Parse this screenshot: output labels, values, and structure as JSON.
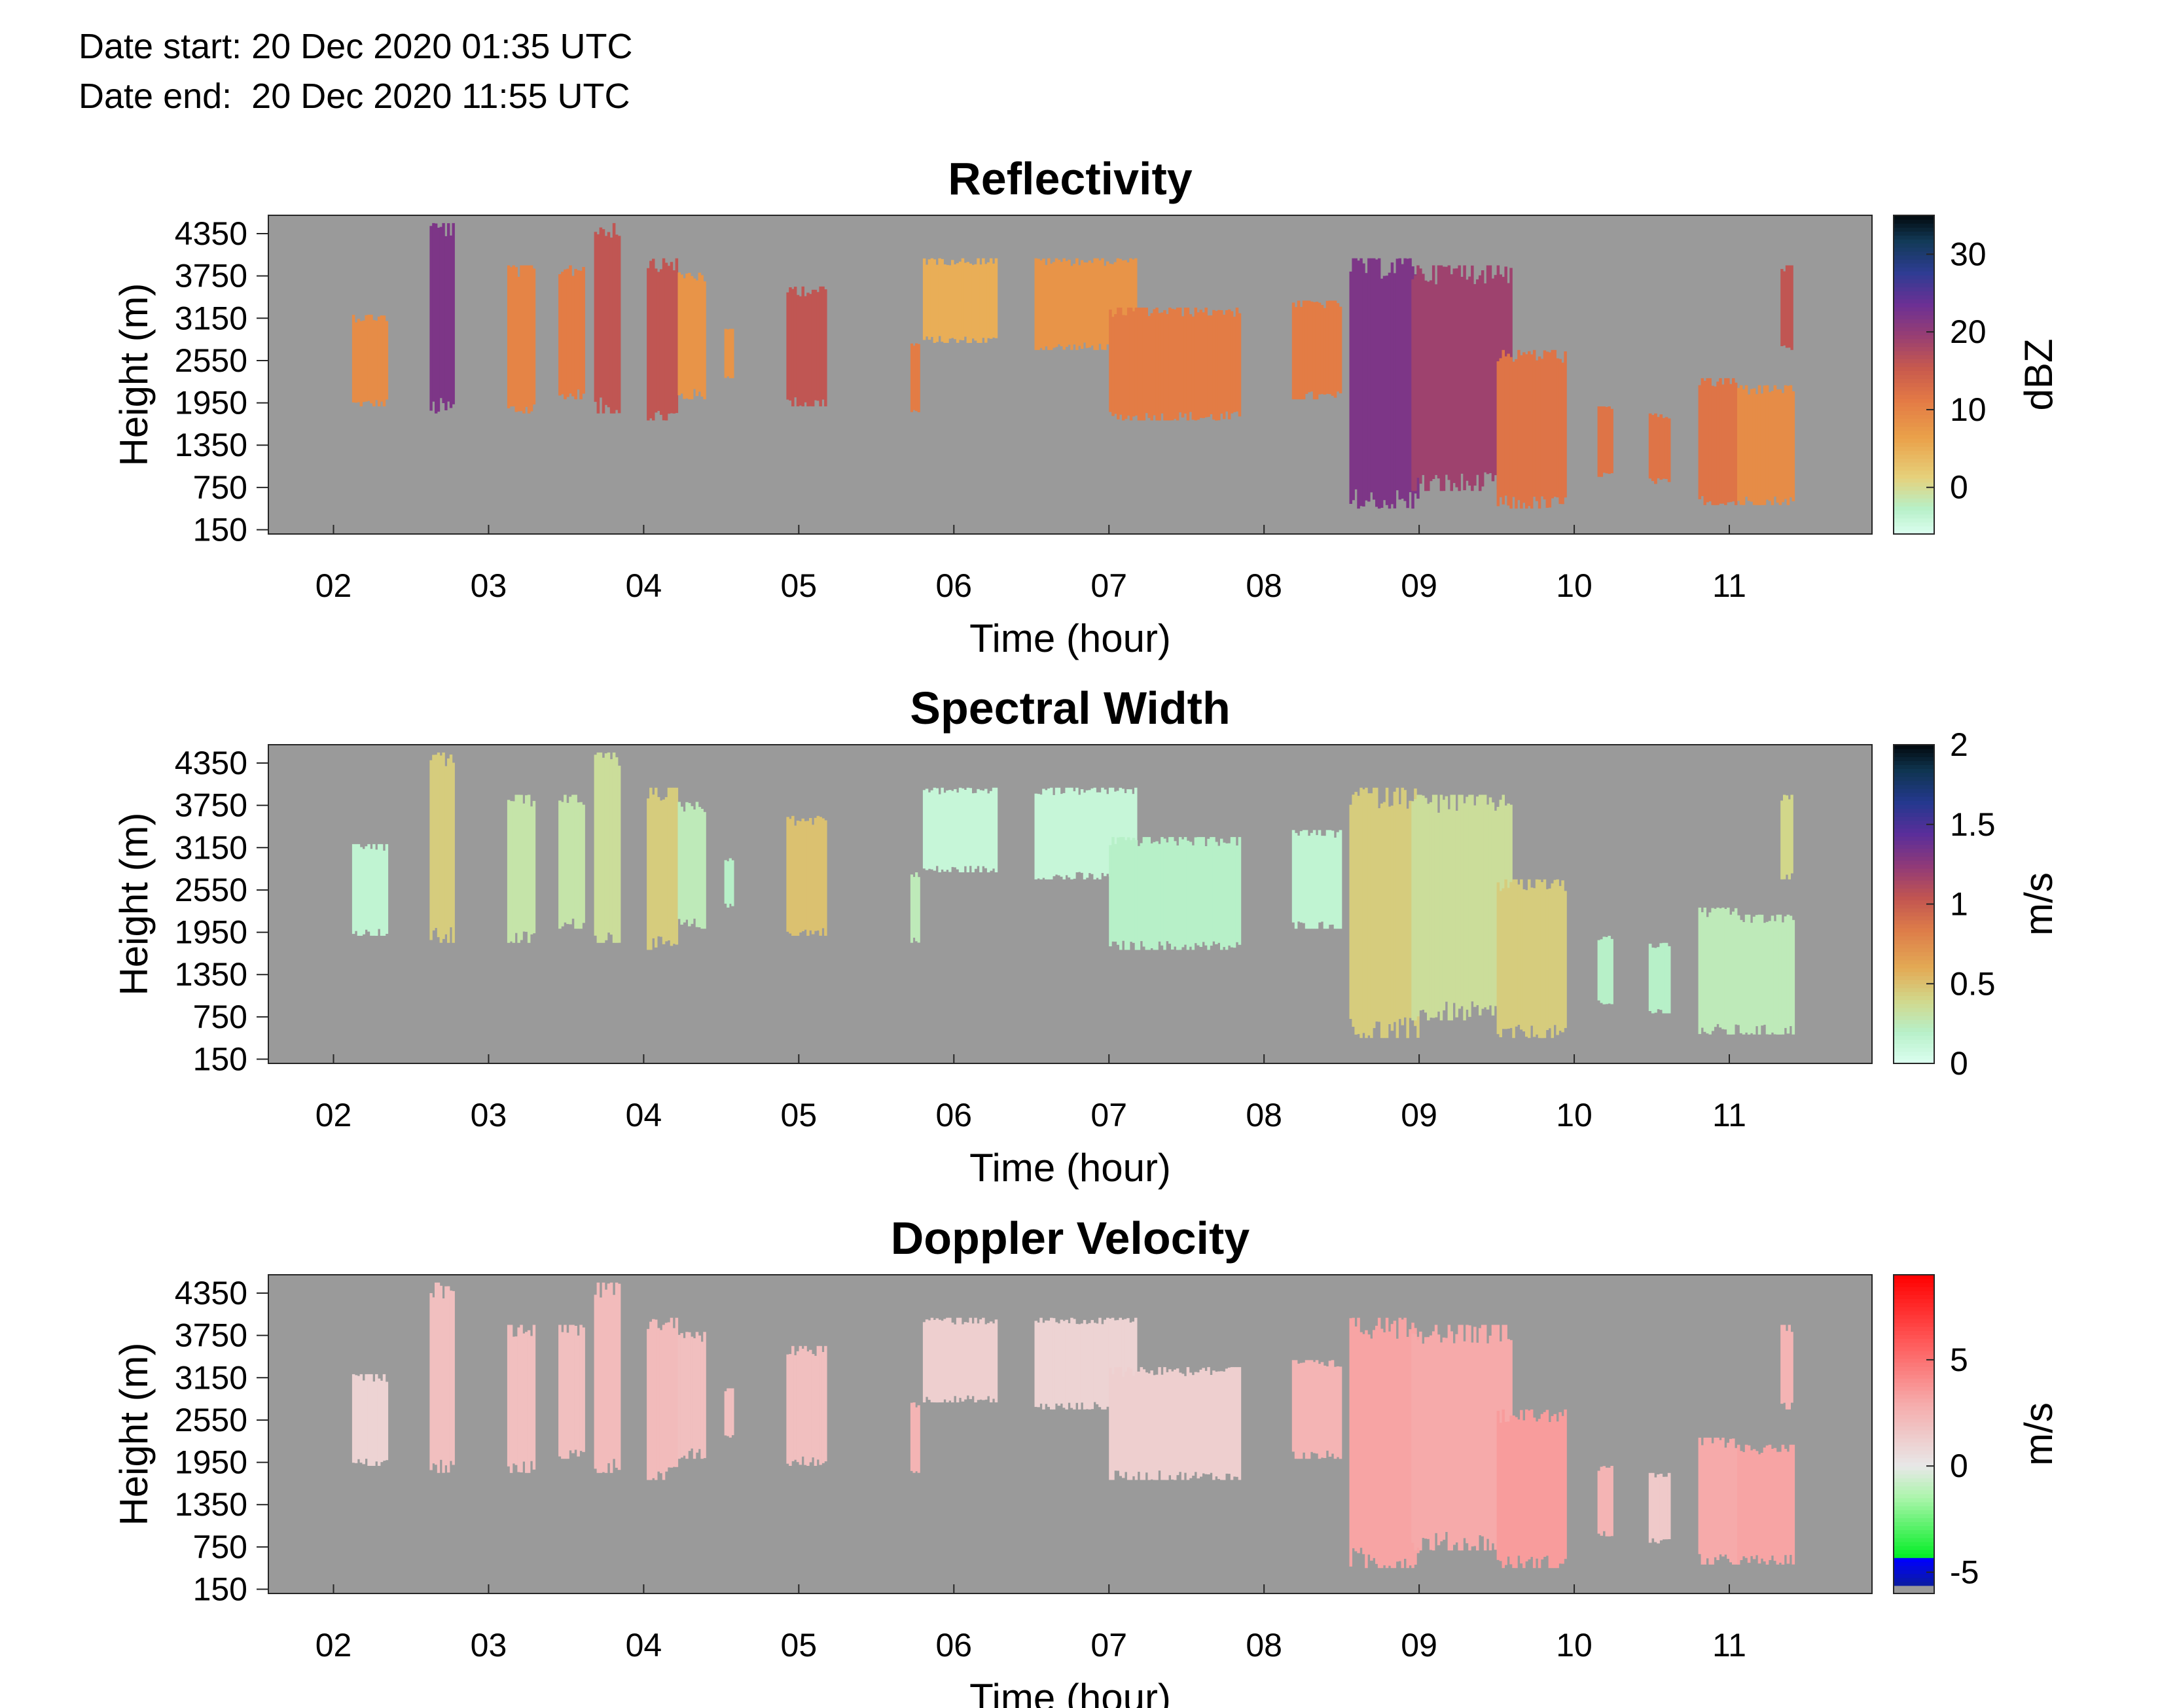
{
  "header": {
    "date_start": "Date start: 20 Dec 2020 01:35 UTC",
    "date_end": "Date end:  20 Dec 2020 11:55 UTC"
  },
  "chart_data": [
    {
      "type": "heatmap",
      "title": "Reflectivity",
      "xlabel": "Time (hour)",
      "ylabel": "Height (m)",
      "xlim": [
        1.58,
        11.92
      ],
      "ylim": [
        90,
        4610
      ],
      "x_ticks": [
        "02",
        "03",
        "04",
        "05",
        "06",
        "07",
        "08",
        "09",
        "10",
        "11"
      ],
      "x_tick_values": [
        2,
        3,
        4,
        5,
        6,
        7,
        8,
        9,
        10,
        11
      ],
      "y_ticks": [
        "4350",
        "3750",
        "3150",
        "2550",
        "1950",
        "1350",
        "750",
        "150"
      ],
      "y_tick_values": [
        4350,
        3750,
        3150,
        2550,
        1950,
        1350,
        750,
        150
      ],
      "colorbar": {
        "label": "dBZ",
        "range": [
          -6,
          35
        ],
        "ticks": [
          "30",
          "20",
          "10",
          "0"
        ],
        "tick_values": [
          30,
          20,
          10,
          0
        ],
        "colormap": "reflectivity"
      },
      "background_color": "#9a9a9a",
      "echoes": [
        {
          "t0": 2.12,
          "t1": 2.35,
          "h0": 1900,
          "h1": 3200,
          "value": 9
        },
        {
          "t0": 2.62,
          "t1": 2.78,
          "h0": 1800,
          "h1": 4500,
          "value": 22
        },
        {
          "t0": 3.12,
          "t1": 3.3,
          "h0": 1800,
          "h1": 3900,
          "value": 10
        },
        {
          "t0": 3.45,
          "t1": 3.62,
          "h0": 2000,
          "h1": 3900,
          "value": 11
        },
        {
          "t0": 3.68,
          "t1": 3.85,
          "h0": 1800,
          "h1": 4500,
          "value": 16
        },
        {
          "t0": 4.02,
          "t1": 4.22,
          "h0": 1700,
          "h1": 4000,
          "value": 16
        },
        {
          "t0": 4.22,
          "t1": 4.4,
          "h0": 2000,
          "h1": 3800,
          "value": 8
        },
        {
          "t0": 4.52,
          "t1": 4.58,
          "h0": 2300,
          "h1": 3000,
          "value": 8
        },
        {
          "t0": 4.92,
          "t1": 5.18,
          "h0": 1900,
          "h1": 3600,
          "value": 16
        },
        {
          "t0": 5.72,
          "t1": 5.78,
          "h0": 1800,
          "h1": 2800,
          "value": 11
        },
        {
          "t0": 5.8,
          "t1": 6.28,
          "h0": 2800,
          "h1": 4000,
          "value": 5
        },
        {
          "t0": 6.52,
          "t1": 7.18,
          "h0": 2700,
          "h1": 4000,
          "value": 8
        },
        {
          "t0": 7.0,
          "t1": 7.85,
          "h0": 1700,
          "h1": 3300,
          "value": 11
        },
        {
          "t0": 8.18,
          "t1": 8.5,
          "h0": 2000,
          "h1": 3400,
          "value": 11
        },
        {
          "t0": 8.55,
          "t1": 9.0,
          "h0": 450,
          "h1": 4000,
          "value": 22
        },
        {
          "t0": 8.95,
          "t1": 9.6,
          "h0": 700,
          "h1": 3900,
          "value": 19
        },
        {
          "t0": 9.5,
          "t1": 9.95,
          "h0": 450,
          "h1": 2700,
          "value": 12
        },
        {
          "t0": 10.15,
          "t1": 10.25,
          "h0": 900,
          "h1": 1900,
          "value": 12
        },
        {
          "t0": 10.48,
          "t1": 10.62,
          "h0": 800,
          "h1": 1800,
          "value": 12
        },
        {
          "t0": 10.8,
          "t1": 11.05,
          "h0": 500,
          "h1": 2300,
          "value": 12
        },
        {
          "t0": 11.05,
          "t1": 11.42,
          "h0": 500,
          "h1": 2200,
          "value": 9
        },
        {
          "t0": 11.33,
          "t1": 11.41,
          "h0": 2700,
          "h1": 3900,
          "value": 16
        }
      ]
    },
    {
      "type": "heatmap",
      "title": "Spectral Width",
      "xlabel": "Time (hour)",
      "ylabel": "Height (m)",
      "xlim": [
        1.58,
        11.92
      ],
      "ylim": [
        90,
        4610
      ],
      "x_ticks": [
        "02",
        "03",
        "04",
        "05",
        "06",
        "07",
        "08",
        "09",
        "10",
        "11"
      ],
      "x_tick_values": [
        2,
        3,
        4,
        5,
        6,
        7,
        8,
        9,
        10,
        11
      ],
      "y_ticks": [
        "4350",
        "3750",
        "3150",
        "2550",
        "1950",
        "1350",
        "750",
        "150"
      ],
      "y_tick_values": [
        4350,
        3750,
        3150,
        2550,
        1950,
        1350,
        750,
        150
      ],
      "colorbar": {
        "label": "m/s",
        "range": [
          0,
          2
        ],
        "ticks": [
          "2",
          "1.5",
          "1",
          "0.5",
          "0"
        ],
        "tick_values": [
          2,
          1.5,
          1,
          0.5,
          0
        ],
        "colormap": "width"
      },
      "background_color": "#9a9a9a",
      "echoes": [
        {
          "t0": 2.12,
          "t1": 2.35,
          "h0": 1900,
          "h1": 3200,
          "value": 0.15
        },
        {
          "t0": 2.62,
          "t1": 2.78,
          "h0": 1800,
          "h1": 4500,
          "value": 0.45
        },
        {
          "t0": 3.12,
          "t1": 3.3,
          "h0": 1800,
          "h1": 3900,
          "value": 0.3
        },
        {
          "t0": 3.45,
          "t1": 3.62,
          "h0": 2000,
          "h1": 3900,
          "value": 0.3
        },
        {
          "t0": 3.68,
          "t1": 3.85,
          "h0": 1800,
          "h1": 4500,
          "value": 0.35
        },
        {
          "t0": 4.02,
          "t1": 4.22,
          "h0": 1700,
          "h1": 4000,
          "value": 0.45
        },
        {
          "t0": 4.22,
          "t1": 4.4,
          "h0": 2000,
          "h1": 3800,
          "value": 0.25
        },
        {
          "t0": 4.52,
          "t1": 4.58,
          "h0": 2300,
          "h1": 3000,
          "value": 0.2
        },
        {
          "t0": 4.92,
          "t1": 5.18,
          "h0": 1900,
          "h1": 3600,
          "value": 0.5
        },
        {
          "t0": 5.72,
          "t1": 5.78,
          "h0": 1800,
          "h1": 2800,
          "value": 0.25
        },
        {
          "t0": 5.8,
          "t1": 6.28,
          "h0": 2800,
          "h1": 4000,
          "value": 0.12
        },
        {
          "t0": 6.52,
          "t1": 7.18,
          "h0": 2700,
          "h1": 4000,
          "value": 0.12
        },
        {
          "t0": 7.0,
          "t1": 7.85,
          "h0": 1700,
          "h1": 3300,
          "value": 0.2
        },
        {
          "t0": 8.18,
          "t1": 8.5,
          "h0": 2000,
          "h1": 3400,
          "value": 0.15
        },
        {
          "t0": 8.55,
          "t1": 9.0,
          "h0": 450,
          "h1": 4000,
          "value": 0.45
        },
        {
          "t0": 8.95,
          "t1": 9.6,
          "h0": 700,
          "h1": 3900,
          "value": 0.35
        },
        {
          "t0": 9.5,
          "t1": 9.95,
          "h0": 450,
          "h1": 2700,
          "value": 0.45
        },
        {
          "t0": 10.15,
          "t1": 10.25,
          "h0": 900,
          "h1": 1900,
          "value": 0.2
        },
        {
          "t0": 10.48,
          "t1": 10.62,
          "h0": 800,
          "h1": 1800,
          "value": 0.2
        },
        {
          "t0": 10.8,
          "t1": 11.05,
          "h0": 500,
          "h1": 2300,
          "value": 0.25
        },
        {
          "t0": 11.05,
          "t1": 11.42,
          "h0": 500,
          "h1": 2200,
          "value": 0.25
        },
        {
          "t0": 11.33,
          "t1": 11.41,
          "h0": 2700,
          "h1": 3900,
          "value": 0.4
        }
      ]
    },
    {
      "type": "heatmap",
      "title": "Doppler Velocity",
      "xlabel": "Time (hour)",
      "ylabel": "Height (m)",
      "xlim": [
        1.58,
        11.92
      ],
      "ylim": [
        90,
        4610
      ],
      "x_ticks": [
        "02",
        "03",
        "04",
        "05",
        "06",
        "07",
        "08",
        "09",
        "10",
        "11"
      ],
      "x_tick_values": [
        2,
        3,
        4,
        5,
        6,
        7,
        8,
        9,
        10,
        11
      ],
      "y_ticks": [
        "4350",
        "3750",
        "3150",
        "2550",
        "1950",
        "1350",
        "750",
        "150"
      ],
      "y_tick_values": [
        4350,
        3750,
        3150,
        2550,
        1950,
        1350,
        750,
        150
      ],
      "colorbar": {
        "label": "m/s",
        "range": [
          -6,
          9
        ],
        "ticks": [
          "5",
          "0",
          "-5"
        ],
        "tick_values": [
          5,
          0,
          -5
        ],
        "colormap": "velocity"
      },
      "background_color": "#9a9a9a",
      "echoes": [
        {
          "t0": 2.12,
          "t1": 2.35,
          "h0": 1900,
          "h1": 3200,
          "value": 1.0
        },
        {
          "t0": 2.62,
          "t1": 2.78,
          "h0": 1800,
          "h1": 4500,
          "value": 2.0
        },
        {
          "t0": 3.12,
          "t1": 3.3,
          "h0": 1800,
          "h1": 3900,
          "value": 2.0
        },
        {
          "t0": 3.45,
          "t1": 3.62,
          "h0": 2000,
          "h1": 3900,
          "value": 2.0
        },
        {
          "t0": 3.68,
          "t1": 3.85,
          "h0": 1800,
          "h1": 4500,
          "value": 2.2
        },
        {
          "t0": 4.02,
          "t1": 4.22,
          "h0": 1700,
          "h1": 4000,
          "value": 2.2
        },
        {
          "t0": 4.22,
          "t1": 4.4,
          "h0": 2000,
          "h1": 3800,
          "value": 2.0
        },
        {
          "t0": 4.52,
          "t1": 4.58,
          "h0": 2300,
          "h1": 3000,
          "value": 2.0
        },
        {
          "t0": 4.92,
          "t1": 5.18,
          "h0": 1900,
          "h1": 3600,
          "value": 2.0
        },
        {
          "t0": 5.72,
          "t1": 5.78,
          "h0": 1800,
          "h1": 2800,
          "value": 2.5
        },
        {
          "t0": 5.8,
          "t1": 6.28,
          "h0": 2800,
          "h1": 4000,
          "value": 1.2
        },
        {
          "t0": 6.52,
          "t1": 7.18,
          "h0": 2700,
          "h1": 4000,
          "value": 1.0
        },
        {
          "t0": 7.0,
          "t1": 7.85,
          "h0": 1700,
          "h1": 3300,
          "value": 1.2
        },
        {
          "t0": 8.18,
          "t1": 8.5,
          "h0": 2000,
          "h1": 3400,
          "value": 2.5
        },
        {
          "t0": 8.55,
          "t1": 9.0,
          "h0": 450,
          "h1": 4000,
          "value": 3.2
        },
        {
          "t0": 8.95,
          "t1": 9.6,
          "h0": 700,
          "h1": 3900,
          "value": 3.0
        },
        {
          "t0": 9.5,
          "t1": 9.95,
          "h0": 450,
          "h1": 2700,
          "value": 3.5
        },
        {
          "t0": 10.15,
          "t1": 10.25,
          "h0": 900,
          "h1": 1900,
          "value": 2.5
        },
        {
          "t0": 10.48,
          "t1": 10.62,
          "h0": 800,
          "h1": 1800,
          "value": 1.5
        },
        {
          "t0": 10.8,
          "t1": 11.05,
          "h0": 500,
          "h1": 2300,
          "value": 3.0
        },
        {
          "t0": 11.05,
          "t1": 11.42,
          "h0": 500,
          "h1": 2200,
          "value": 3.2
        },
        {
          "t0": 11.33,
          "t1": 11.41,
          "h0": 2700,
          "h1": 3900,
          "value": 2.5
        }
      ]
    }
  ]
}
